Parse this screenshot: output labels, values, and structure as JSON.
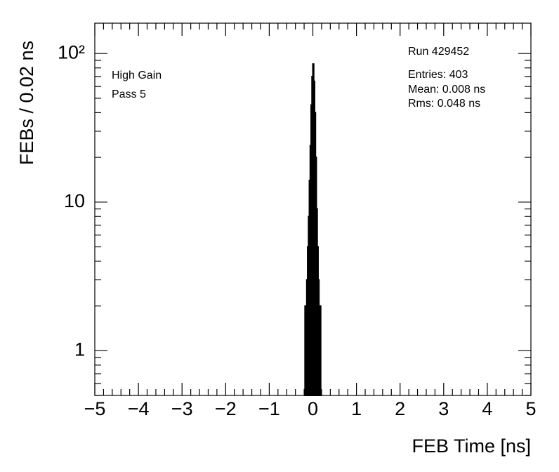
{
  "chart_data": {
    "type": "histogram",
    "xlabel": "FEB Time [ns]",
    "ylabel": "FEBs / 0.02 ns",
    "annotations": [
      "High Gain",
      "Pass 5",
      "Run 429452",
      "Entries: 403",
      "Mean: 0.008 ns",
      "Rms: 0.048 ns"
    ],
    "bins": [
      -0.18,
      -0.16,
      -0.14,
      -0.12,
      -0.1,
      -0.08,
      -0.06,
      -0.04,
      -0.02,
      0,
      0.02,
      0.04,
      0.06,
      0.08,
      0.1,
      0.12,
      0.14,
      0.16,
      0.18
    ],
    "values": [
      2,
      2,
      3,
      5,
      8,
      14,
      24,
      45,
      70,
      85,
      65,
      40,
      20,
      9,
      5,
      3,
      2,
      2
    ],
    "color": "#000000",
    "xlim": [
      -5,
      5
    ],
    "xticks": [
      {
        "value": -5,
        "label": "−5"
      },
      {
        "value": -4,
        "label": "−4"
      },
      {
        "value": -3,
        "label": "−3"
      },
      {
        "value": -2,
        "label": "−2"
      },
      {
        "value": -1,
        "label": "−1"
      },
      0,
      1,
      2,
      3,
      4,
      5
    ],
    "ylim": [
      0.5,
      160
    ],
    "ylog": true,
    "yticks": [
      1,
      10,
      {
        "value": 100,
        "label": "10²"
      }
    ]
  }
}
